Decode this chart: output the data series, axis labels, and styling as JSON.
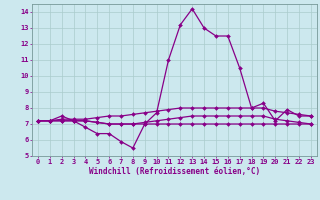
{
  "title": "",
  "xlabel": "Windchill (Refroidissement éolien,°C)",
  "ylabel": "",
  "background_color": "#cce8ee",
  "grid_color": "#aacccc",
  "line_color": "#880088",
  "xlim": [
    -0.5,
    23.5
  ],
  "ylim": [
    5,
    14.5
  ],
  "yticks": [
    5,
    6,
    7,
    8,
    9,
    10,
    11,
    12,
    13,
    14
  ],
  "xticks": [
    0,
    1,
    2,
    3,
    4,
    5,
    6,
    7,
    8,
    9,
    10,
    11,
    12,
    13,
    14,
    15,
    16,
    17,
    18,
    19,
    20,
    21,
    22,
    23
  ],
  "series": [
    [
      7.2,
      7.2,
      7.5,
      7.2,
      6.8,
      6.4,
      6.4,
      5.9,
      5.5,
      7.0,
      7.7,
      11.0,
      13.2,
      14.2,
      13.0,
      12.5,
      12.5,
      10.5,
      8.0,
      8.3,
      7.2,
      7.9,
      7.5,
      7.5
    ],
    [
      7.2,
      7.2,
      7.3,
      7.3,
      7.3,
      7.4,
      7.5,
      7.5,
      7.6,
      7.7,
      7.8,
      7.9,
      8.0,
      8.0,
      8.0,
      8.0,
      8.0,
      8.0,
      8.0,
      8.0,
      7.8,
      7.7,
      7.6,
      7.5
    ],
    [
      7.2,
      7.2,
      7.2,
      7.2,
      7.2,
      7.1,
      7.0,
      7.0,
      7.0,
      7.1,
      7.2,
      7.3,
      7.4,
      7.5,
      7.5,
      7.5,
      7.5,
      7.5,
      7.5,
      7.5,
      7.3,
      7.2,
      7.1,
      7.0
    ],
    [
      7.2,
      7.2,
      7.2,
      7.2,
      7.2,
      7.1,
      7.0,
      7.0,
      7.0,
      7.0,
      7.0,
      7.0,
      7.0,
      7.0,
      7.0,
      7.0,
      7.0,
      7.0,
      7.0,
      7.0,
      7.0,
      7.0,
      7.0,
      7.0
    ]
  ],
  "label_fontsize": 5.0,
  "xlabel_fontsize": 5.5,
  "marker_size": 2.0,
  "line_width": 0.9
}
